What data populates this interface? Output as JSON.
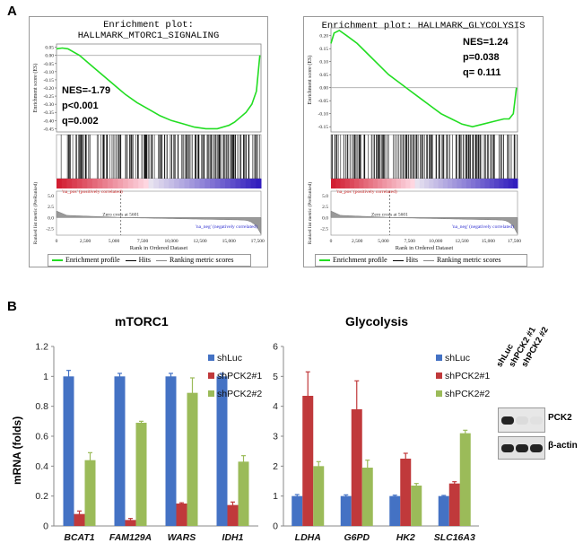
{
  "panels": {
    "a": "A",
    "b": "B"
  },
  "gsea": [
    {
      "title_line1": "Enrichment plot:",
      "title_line2": "HALLMARK_MTORC1_SIGNALING",
      "stats": [
        "NES=-1.79",
        "p<0.001",
        "q=0.002"
      ],
      "es_axis_label": "Enrichment score (ES)",
      "rank_axis_label": "Ranked list metric (PreRanked)",
      "es_ticks": [
        "0.05",
        "0.00",
        "-0.05",
        "-0.10",
        "-0.15",
        "-0.20",
        "-0.25",
        "-0.30",
        "-0.35",
        "-0.40",
        "-0.45"
      ],
      "es_ticks_values": [
        0.05,
        0.0,
        -0.05,
        -0.1,
        -0.15,
        -0.2,
        -0.25,
        -0.3,
        -0.35,
        -0.4,
        -0.45
      ],
      "es_range": [
        -0.47,
        0.07
      ],
      "es_curve_x": [
        0,
        500,
        1000,
        2000,
        3000,
        4000,
        5000,
        6000,
        7000,
        8000,
        9000,
        10000,
        11000,
        12000,
        13000,
        14000,
        15000,
        15500,
        16000,
        16500,
        17000,
        17400,
        17700
      ],
      "es_curve_y": [
        0.04,
        0.045,
        0.04,
        0.0,
        -0.06,
        -0.12,
        -0.18,
        -0.24,
        -0.29,
        -0.33,
        -0.37,
        -0.4,
        -0.42,
        -0.44,
        -0.45,
        -0.45,
        -0.43,
        -0.41,
        -0.38,
        -0.35,
        -0.3,
        -0.22,
        0.0
      ],
      "hit_density": "dense-early",
      "pos_label": "'na_pos' (positively correlated)",
      "neg_label": "'na_neg' (negatively correlated)",
      "zero_cross": "Zero cross at 5601",
      "metric_ticks": [
        "5.0",
        "2.5",
        "0.0",
        "-2.5"
      ],
      "x_ticks": [
        "0",
        "2,500",
        "5,000",
        "7,500",
        "10,000",
        "12,500",
        "15,000",
        "17,500"
      ],
      "x_label": "Rank in Ordered Dataset",
      "legend": [
        "Enrichment profile",
        "Hits",
        "Ranking metric scores"
      ]
    },
    {
      "title_line1": "Enrichment plot: HALLMARK_GLYCOLYSIS",
      "title_line2": "",
      "stats": [
        "NES=1.24",
        "p=0.038",
        "q= 0.111"
      ],
      "es_axis_label": "Enrichment score (ES)",
      "rank_axis_label": "Ranked list metric (PreRanked)",
      "es_ticks": [
        "0.20",
        "0.15",
        "0.10",
        "0.05",
        "0.00",
        "-0.05",
        "-0.10",
        "-0.15"
      ],
      "es_ticks_values": [
        0.2,
        0.15,
        0.1,
        0.05,
        0.0,
        -0.05,
        -0.1,
        -0.15
      ],
      "es_range": [
        -0.17,
        0.23
      ],
      "es_curve_x": [
        0,
        300,
        800,
        1500,
        2500,
        3500,
        4500,
        5500,
        6500,
        7500,
        8500,
        9500,
        10500,
        11500,
        12500,
        13500,
        14500,
        15500,
        16500,
        17000,
        17400,
        17700
      ],
      "es_curve_y": [
        0.17,
        0.21,
        0.22,
        0.2,
        0.17,
        0.13,
        0.09,
        0.05,
        0.02,
        -0.01,
        -0.04,
        -0.07,
        -0.1,
        -0.12,
        -0.14,
        -0.15,
        -0.14,
        -0.13,
        -0.12,
        -0.12,
        -0.1,
        0.0
      ],
      "hit_density": "spread",
      "pos_label": "'na_pos' (positively correlated)",
      "neg_label": "'na_neg' (negatively correlated)",
      "zero_cross": "Zero cross at 5601",
      "metric_ticks": [
        "5.0",
        "2.5",
        "0.0",
        "-2.5"
      ],
      "x_ticks": [
        "0",
        "2,500",
        "5,000",
        "7,500",
        "10,000",
        "12,500",
        "15,000",
        "17,500"
      ],
      "x_label": "Rank in Ordered Dataset",
      "legend": [
        "Enrichment profile",
        "Hits",
        "Ranking metric scores"
      ]
    }
  ],
  "chart_data": [
    {
      "type": "bar",
      "title": "mTORC1",
      "ylabel": "mRNA (folds)",
      "ylim": [
        0,
        1.2
      ],
      "yticks": [
        "0",
        "0.2",
        "0.4",
        "0.6",
        "0.8",
        "1",
        "1.2"
      ],
      "yticks_values": [
        0,
        0.2,
        0.4,
        0.6,
        0.8,
        1,
        1.2
      ],
      "categories": [
        "BCAT1",
        "FAM129A",
        "WARS",
        "IDH1"
      ],
      "series": [
        {
          "name": "shLuc",
          "values": [
            1.0,
            1.0,
            1.0,
            1.0
          ],
          "errors": [
            0.04,
            0.02,
            0.02,
            0.02
          ]
        },
        {
          "name": "shPCK2#1",
          "values": [
            0.08,
            0.04,
            0.15,
            0.14
          ],
          "errors": [
            0.02,
            0.01,
            0.005,
            0.02
          ]
        },
        {
          "name": "shPCK2#2",
          "values": [
            0.44,
            0.69,
            0.89,
            0.43
          ],
          "errors": [
            0.05,
            0.01,
            0.1,
            0.04
          ]
        }
      ]
    },
    {
      "type": "bar",
      "title": "Glycolysis",
      "ylabel": "",
      "ylim": [
        0,
        6
      ],
      "yticks": [
        "0",
        "1",
        "2",
        "3",
        "4",
        "5",
        "6"
      ],
      "yticks_values": [
        0,
        1,
        2,
        3,
        4,
        5,
        6
      ],
      "categories": [
        "LDHA",
        "G6PD",
        "HK2",
        "SLC16A3"
      ],
      "series": [
        {
          "name": "shLuc",
          "values": [
            1.0,
            1.0,
            1.0,
            1.0
          ],
          "errors": [
            0.05,
            0.04,
            0.03,
            0.02
          ]
        },
        {
          "name": "shPCK2#1",
          "values": [
            4.35,
            3.9,
            2.25,
            1.42
          ],
          "errors": [
            0.8,
            0.95,
            0.18,
            0.06
          ]
        },
        {
          "name": "shPCK2#2",
          "values": [
            2.0,
            1.95,
            1.35,
            3.1
          ],
          "errors": [
            0.15,
            0.25,
            0.07,
            0.1
          ]
        }
      ]
    }
  ],
  "colors": {
    "shLuc": "#4472c4",
    "shPCK2#1": "#c0393b",
    "shPCK2#2": "#9bbb59",
    "es_line": "#22dd22"
  },
  "western": {
    "lanes": [
      "shLuc",
      "shPCK2 #1",
      "shPCK2 #2"
    ],
    "bands": [
      "PCK2",
      "β-actin"
    ],
    "pck2_intensity": [
      1.0,
      0.08,
      0.05
    ],
    "actin_intensity": [
      1.0,
      1.0,
      1.0
    ]
  }
}
